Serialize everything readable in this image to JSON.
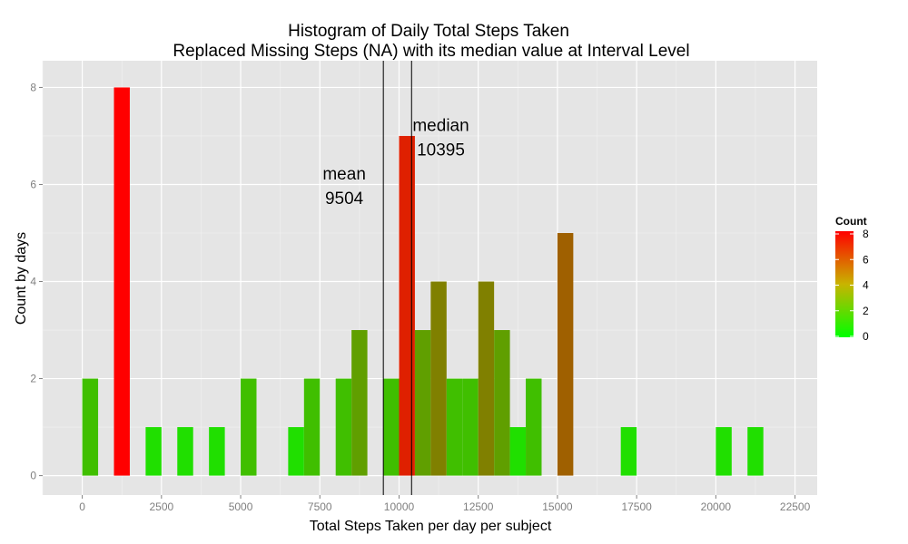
{
  "chart_data": {
    "type": "bar",
    "title": "Histogram of Daily Total Steps Taken",
    "subtitle": "Replaced Missing Steps (NA) with its median value at Interval Level",
    "xlabel": "Total Steps Taken per day per subject",
    "ylabel": "Count by days",
    "xlim": [
      -1250,
      23200
    ],
    "ylim": [
      -0.4,
      8.55
    ],
    "bin_width": 500,
    "x_ticks": [
      0,
      2500,
      5000,
      7500,
      10000,
      12500,
      15000,
      17500,
      20000,
      22500
    ],
    "x_tick_labels": [
      "0",
      "2500",
      "5000",
      "7500",
      "10000",
      "12500",
      "15000",
      "17500",
      "20000",
      "22500"
    ],
    "y_ticks": [
      0,
      2,
      4,
      6,
      8
    ],
    "y_tick_labels": [
      "0",
      "2",
      "4",
      "6",
      "8"
    ],
    "bins": [
      {
        "x": 250,
        "count": 2
      },
      {
        "x": 1250,
        "count": 8
      },
      {
        "x": 2250,
        "count": 1
      },
      {
        "x": 3250,
        "count": 1
      },
      {
        "x": 4250,
        "count": 1
      },
      {
        "x": 5250,
        "count": 2
      },
      {
        "x": 6750,
        "count": 1
      },
      {
        "x": 7250,
        "count": 2
      },
      {
        "x": 8250,
        "count": 2
      },
      {
        "x": 8750,
        "count": 3
      },
      {
        "x": 9750,
        "count": 2
      },
      {
        "x": 10250,
        "count": 7
      },
      {
        "x": 10750,
        "count": 3
      },
      {
        "x": 11250,
        "count": 4
      },
      {
        "x": 11750,
        "count": 2
      },
      {
        "x": 12250,
        "count": 2
      },
      {
        "x": 12750,
        "count": 4
      },
      {
        "x": 13250,
        "count": 3
      },
      {
        "x": 13750,
        "count": 1
      },
      {
        "x": 14250,
        "count": 2
      },
      {
        "x": 15250,
        "count": 5
      },
      {
        "x": 17250,
        "count": 1
      },
      {
        "x": 20250,
        "count": 1
      },
      {
        "x": 21250,
        "count": 1
      }
    ],
    "vlines": [
      {
        "x": 9504,
        "label_name": "mean",
        "label_value": "9504",
        "label_x": 8270,
        "label_y_name": 6.1,
        "label_y_value": 5.6
      },
      {
        "x": 10395,
        "label_name": "median",
        "label_value": "10395",
        "label_x": 11320,
        "label_y_name": 7.1,
        "label_y_value": 6.6
      }
    ],
    "legend": {
      "title": "Count",
      "position": "right",
      "ticks": [
        "0",
        "2",
        "4",
        "6",
        "8"
      ],
      "low_color": "#00ff00",
      "high_color": "#ff0000"
    },
    "grid": true,
    "colors": {
      "panel_bg": "#e5e5e5",
      "grid_major": "#ffffff",
      "grid_minor": "#f2f2f2",
      "vline": "#000000"
    }
  }
}
